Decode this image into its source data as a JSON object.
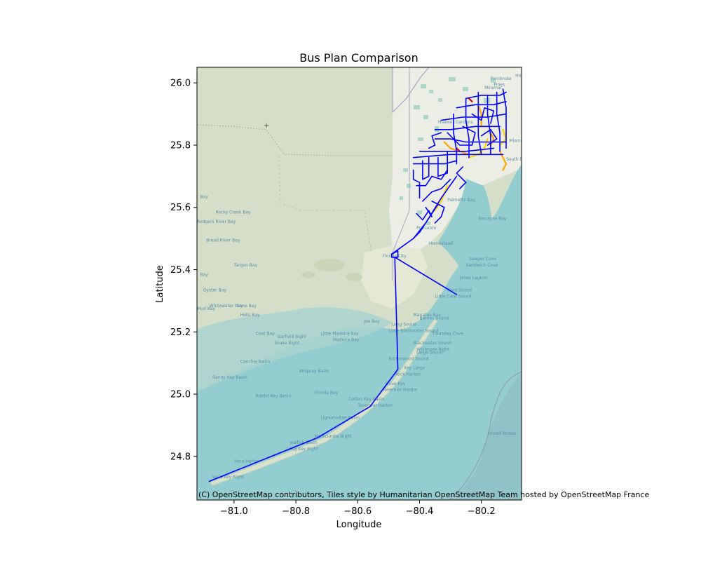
{
  "title": "Bus Plan Comparison",
  "xlabel": "Longitude",
  "ylabel": "Latitude",
  "attribution": "(C) OpenStreetMap contributors, Tiles style by Humanitarian OpenStreetMap Team hosted by OpenStreetMap France",
  "colors": {
    "route_primary": "#0000ff",
    "route_secondary": "#ffa500",
    "route_tertiary": "#ffd700",
    "water": "#94cdcf",
    "land": "#d5dec9",
    "urban": "#eceee6"
  },
  "chart_data": {
    "type": "map",
    "title": "Bus Plan Comparison",
    "xlabel": "Longitude",
    "ylabel": "Latitude",
    "xlim": [
      -81.12,
      -80.07
    ],
    "ylim": [
      24.66,
      26.05
    ],
    "xticks": [
      -81.0,
      -80.8,
      -80.6,
      -80.4,
      -80.2
    ],
    "xtick_labels": [
      "−81.0",
      "−80.8",
      "−80.6",
      "−80.4",
      "−80.2"
    ],
    "yticks": [
      24.8,
      25.0,
      25.2,
      25.4,
      25.6,
      25.8,
      26.0
    ],
    "ytick_labels": [
      "24.8",
      "25.0",
      "25.2",
      "25.4",
      "25.6",
      "25.8",
      "26.0"
    ],
    "map_labels": [
      {
        "text": "Pembroke",
        "lon": -80.17,
        "lat": 26.01
      },
      {
        "text": "Pines",
        "lon": -80.16,
        "lat": 25.99
      },
      {
        "text": "Hollywood",
        "lon": -80.09,
        "lat": 26.02
      },
      {
        "text": "Miramar",
        "lon": -80.19,
        "lat": 25.98
      },
      {
        "text": "Hialeah Gardens",
        "lon": -80.34,
        "lat": 25.87
      },
      {
        "text": "Miami Beach",
        "lon": -80.11,
        "lat": 25.81
      },
      {
        "text": "South Beach",
        "lon": -80.12,
        "lat": 25.75
      },
      {
        "text": "Palmetto Bay",
        "lon": -80.31,
        "lat": 25.62
      },
      {
        "text": "Biscayne Bay",
        "lon": -80.21,
        "lat": 25.56
      },
      {
        "text": "Princeton",
        "lon": -80.41,
        "lat": 25.53
      },
      {
        "text": "Homestead",
        "lon": -80.37,
        "lat": 25.48
      },
      {
        "text": "Florida City",
        "lon": -80.52,
        "lat": 25.44
      },
      {
        "text": "Sawyer Cove",
        "lon": -80.24,
        "lat": 25.43
      },
      {
        "text": "Sandwich Cove",
        "lon": -80.25,
        "lat": 25.41
      },
      {
        "text": "Jones Lagoon",
        "lon": -80.27,
        "lat": 25.37
      },
      {
        "text": "Card Sound",
        "lon": -80.31,
        "lat": 25.33
      },
      {
        "text": "Little Card Sound",
        "lon": -80.35,
        "lat": 25.31
      },
      {
        "text": "Manatee Bay",
        "lon": -80.42,
        "lat": 25.25
      },
      {
        "text": "Barnes Sound",
        "lon": -80.4,
        "lat": 25.24
      },
      {
        "text": "Long Sound",
        "lon": -80.49,
        "lat": 25.22
      },
      {
        "text": "Little Blackwater Sound",
        "lon": -80.5,
        "lat": 25.2
      },
      {
        "text": "Blackwater Sound",
        "lon": -80.42,
        "lat": 25.16
      },
      {
        "text": "Thursday Cove",
        "lon": -80.36,
        "lat": 25.19
      },
      {
        "text": "Whitmore Bight",
        "lon": -80.41,
        "lat": 25.14
      },
      {
        "text": "Largo Sound",
        "lon": -80.41,
        "lat": 25.13
      },
      {
        "text": "Buttonwood Sound",
        "lon": -80.5,
        "lat": 25.11
      },
      {
        "text": "Key Largo",
        "lon": -80.45,
        "lat": 25.08
      },
      {
        "text": "Rock Harbor",
        "lon": -80.48,
        "lat": 25.06
      },
      {
        "text": "Tavernier Harbor",
        "lon": -80.52,
        "lat": 25.01
      },
      {
        "text": "Dove Key",
        "lon": -80.51,
        "lat": 25.03
      },
      {
        "text": "Cotton Key Basin",
        "lon": -80.63,
        "lat": 24.98
      },
      {
        "text": "Tavernier Harbor",
        "lon": -80.6,
        "lat": 24.96
      },
      {
        "text": "Lignumvitae Basin",
        "lon": -80.72,
        "lat": 24.92
      },
      {
        "text": "Matecumbe Bight",
        "lon": -80.74,
        "lat": 24.86
      },
      {
        "text": "Jewfish Basin",
        "lon": -80.82,
        "lat": 24.84
      },
      {
        "text": "Long Key Bight",
        "lon": -80.83,
        "lat": 24.82
      },
      {
        "text": "Vaca Harbor",
        "lon": -81.0,
        "lat": 24.78
      },
      {
        "text": "Vaca Key Bight",
        "lon": -81.07,
        "lat": 24.73
      },
      {
        "text": "Joe Bay",
        "lon": -80.58,
        "lat": 25.23
      },
      {
        "text": "Little Madeira Bay",
        "lon": -80.72,
        "lat": 25.19
      },
      {
        "text": "Madeira Bay",
        "lon": -80.68,
        "lat": 25.17
      },
      {
        "text": "Garfield Bight",
        "lon": -80.86,
        "lat": 25.18
      },
      {
        "text": "Snake Bight",
        "lon": -80.87,
        "lat": 25.16
      },
      {
        "text": "Coot Bay",
        "lon": -80.93,
        "lat": 25.19
      },
      {
        "text": "Conchie Basin",
        "lon": -80.98,
        "lat": 25.1
      },
      {
        "text": "Whipray Basin",
        "lon": -80.79,
        "lat": 25.07
      },
      {
        "text": "Sandy Key Basin",
        "lon": -81.07,
        "lat": 25.05
      },
      {
        "text": "Rabbit Key Basin",
        "lon": -80.93,
        "lat": 24.99
      },
      {
        "text": "Florida Bay",
        "lon": -80.74,
        "lat": 25.0
      },
      {
        "text": "Lane Bay",
        "lon": -80.99,
        "lat": 25.28
      },
      {
        "text": "Hells Bay",
        "lon": -80.98,
        "lat": 25.25
      },
      {
        "text": "Whitewater Bay",
        "lon": -81.08,
        "lat": 25.28
      },
      {
        "text": "Mud Bay",
        "lon": -81.12,
        "lat": 25.27
      },
      {
        "text": "Oyster Bay",
        "lon": -81.1,
        "lat": 25.33
      },
      {
        "text": "Targon Bay",
        "lon": -81.0,
        "lat": 25.41
      },
      {
        "text": "Broad River Bay",
        "lon": -81.09,
        "lat": 25.49
      },
      {
        "text": "Rodgers River Bay",
        "lon": -81.12,
        "lat": 25.55
      },
      {
        "text": "Rocky Creek Bay",
        "lon": -81.06,
        "lat": 25.58
      },
      {
        "text": "Bay",
        "lon": -81.11,
        "lat": 25.63
      },
      {
        "text": "Bay",
        "lon": -81.11,
        "lat": 25.38
      },
      {
        "text": "United States",
        "lon": -80.18,
        "lat": 24.87
      }
    ],
    "series": [
      {
        "kind": "blue",
        "color": "#0000ff",
        "lines": [
          [
            [
              -80.48,
              25.44
            ],
            [
              -80.47,
              25.08
            ],
            [
              -80.56,
              24.96
            ],
            [
              -80.73,
              24.86
            ],
            [
              -81.08,
              24.72
            ]
          ],
          [
            [
              -80.48,
              25.44
            ],
            [
              -80.28,
              25.32
            ]
          ],
          [
            [
              -80.49,
              25.45
            ],
            [
              -80.42,
              25.5
            ],
            [
              -80.38,
              25.55
            ],
            [
              -80.33,
              25.63
            ],
            [
              -80.28,
              25.7
            ]
          ],
          [
            [
              -80.49,
              25.45
            ],
            [
              -80.47,
              25.46
            ],
            [
              -80.47,
              25.44
            ],
            [
              -80.49,
              25.44
            ],
            [
              -80.49,
              25.45
            ]
          ],
          [
            [
              -80.42,
              25.5
            ],
            [
              -80.4,
              25.52
            ],
            [
              -80.36,
              25.58
            ],
            [
              -80.34,
              25.61
            ]
          ],
          [
            [
              -80.41,
              25.58
            ],
            [
              -80.39,
              25.56
            ],
            [
              -80.37,
              25.59
            ],
            [
              -80.36,
              25.57
            ],
            [
              -80.38,
              25.6
            ]
          ],
          [
            [
              -80.35,
              25.55
            ],
            [
              -80.33,
              25.57
            ],
            [
              -80.32,
              25.6
            ],
            [
              -80.36,
              25.62
            ]
          ],
          [
            [
              -80.39,
              25.62
            ],
            [
              -80.36,
              25.65
            ],
            [
              -80.33,
              25.66
            ],
            [
              -80.3,
              25.69
            ]
          ],
          [
            [
              -80.41,
              25.67
            ],
            [
              -80.38,
              25.67
            ],
            [
              -80.36,
              25.7
            ],
            [
              -80.33,
              25.69
            ],
            [
              -80.31,
              25.72
            ]
          ],
          [
            [
              -80.4,
              25.63
            ],
            [
              -80.4,
              25.68
            ],
            [
              -80.42,
              25.69
            ],
            [
              -80.42,
              25.72
            ]
          ],
          [
            [
              -80.42,
              25.74
            ],
            [
              -80.36,
              25.74
            ],
            [
              -80.32,
              25.74
            ],
            [
              -80.28,
              25.75
            ]
          ],
          [
            [
              -80.42,
              25.76
            ],
            [
              -80.3,
              25.77
            ],
            [
              -80.2,
              25.77
            ],
            [
              -80.13,
              25.77
            ]
          ],
          [
            [
              -80.4,
              25.78
            ],
            [
              -80.33,
              25.78
            ],
            [
              -80.25,
              25.78
            ],
            [
              -80.16,
              25.79
            ]
          ],
          [
            [
              -80.39,
              25.75
            ],
            [
              -80.39,
              25.69
            ],
            [
              -80.37,
              25.7
            ],
            [
              -80.37,
              25.76
            ]
          ],
          [
            [
              -80.34,
              25.76
            ],
            [
              -80.34,
              25.7
            ],
            [
              -80.31,
              25.71
            ],
            [
              -80.31,
              25.78
            ]
          ],
          [
            [
              -80.35,
              25.82
            ],
            [
              -80.3,
              25.82
            ],
            [
              -80.25,
              25.81
            ],
            [
              -80.18,
              25.81
            ],
            [
              -80.12,
              25.81
            ]
          ],
          [
            [
              -80.35,
              25.85
            ],
            [
              -80.3,
              25.85
            ],
            [
              -80.22,
              25.86
            ],
            [
              -80.14,
              25.86
            ]
          ],
          [
            [
              -80.33,
              25.88
            ],
            [
              -80.26,
              25.89
            ],
            [
              -80.18,
              25.89
            ],
            [
              -80.12,
              25.9
            ]
          ],
          [
            [
              -80.28,
              25.92
            ],
            [
              -80.22,
              25.93
            ],
            [
              -80.16,
              25.93
            ],
            [
              -80.12,
              25.94
            ]
          ],
          [
            [
              -80.25,
              25.95
            ],
            [
              -80.2,
              25.96
            ],
            [
              -80.14,
              25.96
            ],
            [
              -80.12,
              25.97
            ]
          ],
          [
            [
              -80.29,
              25.9
            ],
            [
              -80.29,
              25.84
            ],
            [
              -80.28,
              25.78
            ],
            [
              -80.28,
              25.74
            ]
          ],
          [
            [
              -80.25,
              25.95
            ],
            [
              -80.25,
              25.88
            ],
            [
              -80.24,
              25.82
            ],
            [
              -80.24,
              25.76
            ]
          ],
          [
            [
              -80.21,
              25.97
            ],
            [
              -80.21,
              25.9
            ],
            [
              -80.21,
              25.83
            ],
            [
              -80.2,
              25.77
            ]
          ],
          [
            [
              -80.18,
              25.96
            ],
            [
              -80.18,
              25.9
            ],
            [
              -80.17,
              25.83
            ],
            [
              -80.17,
              25.77
            ]
          ],
          [
            [
              -80.15,
              25.97
            ],
            [
              -80.15,
              25.9
            ],
            [
              -80.14,
              25.84
            ],
            [
              -80.14,
              25.78
            ]
          ],
          [
            [
              -80.13,
              25.98
            ],
            [
              -80.12,
              25.92
            ],
            [
              -80.12,
              25.85
            ],
            [
              -80.12,
              25.79
            ]
          ],
          [
            [
              -80.31,
              25.84
            ],
            [
              -80.27,
              25.8
            ],
            [
              -80.23,
              25.8
            ],
            [
              -80.22,
              25.84
            ],
            [
              -80.26,
              25.86
            ]
          ],
          [
            [
              -80.37,
              25.79
            ],
            [
              -80.35,
              25.8
            ],
            [
              -80.36,
              25.83
            ],
            [
              -80.33,
              25.84
            ]
          ],
          [
            [
              -80.26,
              25.73
            ],
            [
              -80.28,
              25.71
            ],
            [
              -80.25,
              25.68
            ],
            [
              -80.27,
              25.66
            ]
          ],
          [
            [
              -80.23,
              25.9
            ],
            [
              -80.2,
              25.88
            ],
            [
              -80.19,
              25.92
            ],
            [
              -80.16,
              25.91
            ],
            [
              -80.17,
              25.87
            ]
          ],
          [
            [
              -80.2,
              25.83
            ],
            [
              -80.17,
              25.85
            ],
            [
              -80.15,
              25.82
            ],
            [
              -80.18,
              25.8
            ]
          ]
        ]
      },
      {
        "kind": "orange",
        "color": "#ffa500",
        "lines": [
          [
            [
              -80.32,
              25.81
            ],
            [
              -80.3,
              25.79
            ],
            [
              -80.27,
              25.78
            ],
            [
              -80.24,
              25.77
            ]
          ],
          [
            [
              -80.21,
              25.93
            ],
            [
              -80.2,
              25.9
            ],
            [
              -80.2,
              25.86
            ]
          ],
          [
            [
              -80.14,
              25.78
            ],
            [
              -80.13,
              25.76
            ],
            [
              -80.12,
              25.74
            ],
            [
              -80.13,
              25.72
            ]
          ],
          [
            [
              -80.17,
              25.84
            ],
            [
              -80.16,
              25.82
            ],
            [
              -80.17,
              25.8
            ]
          ]
        ]
      },
      {
        "kind": "yellow",
        "color": "#ffd700",
        "lines": [
          [
            [
              -80.31,
              25.67
            ],
            [
              -80.33,
              25.62
            ],
            [
              -80.35,
              25.59
            ]
          ],
          [
            [
              -80.18,
              25.82
            ],
            [
              -80.19,
              25.79
            ],
            [
              -80.21,
              25.77
            ],
            [
              -80.24,
              25.76
            ]
          ],
          [
            [
              -80.14,
              25.8
            ],
            [
              -80.12,
              25.82
            ],
            [
              -80.13,
              25.85
            ]
          ]
        ]
      },
      {
        "kind": "red",
        "color": "#dd0000",
        "lines": [
          [
            [
              -80.24,
              25.95
            ],
            [
              -80.23,
              25.94
            ]
          ],
          [
            [
              -80.28,
              25.79
            ],
            [
              -80.27,
              25.78
            ]
          ]
        ]
      }
    ]
  }
}
